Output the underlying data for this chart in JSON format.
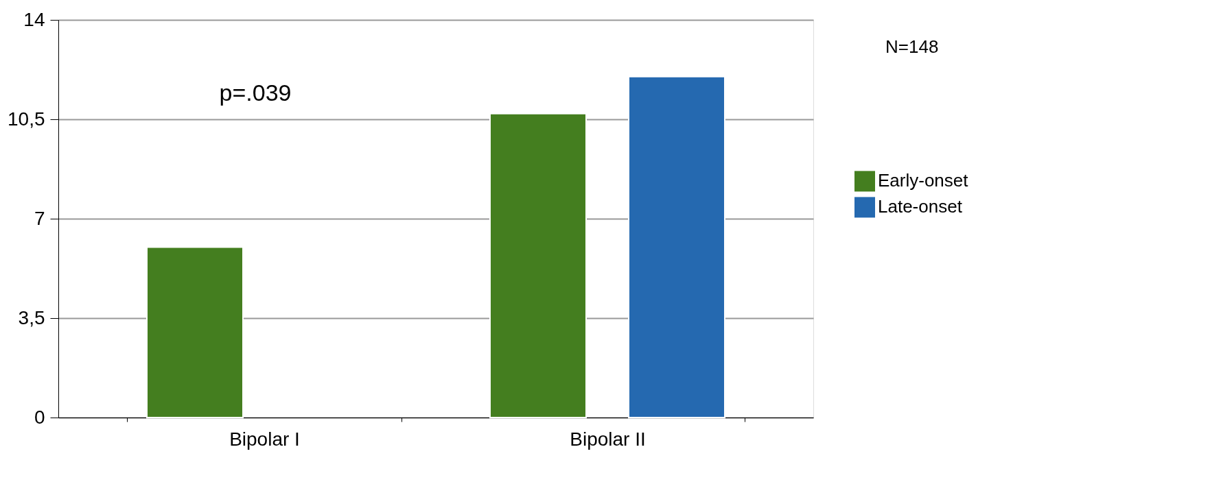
{
  "chart_data": {
    "type": "bar",
    "categories": [
      "Bipolar I",
      "Bipolar II"
    ],
    "series": [
      {
        "name": "Early-onset",
        "color": "#447e1f",
        "values": [
          6.0,
          10.7
        ]
      },
      {
        "name": "Late-onset",
        "color": "#2569b0",
        "values": [
          null,
          12.0
        ]
      }
    ],
    "ylim": [
      0,
      14
    ],
    "yticks": [
      0,
      {
        "value": 3.5,
        "label": "3,5"
      },
      7,
      {
        "value": 10.5,
        "label": "10,5"
      },
      14
    ],
    "grid": "y",
    "legend": "right",
    "annotations": [
      "p=.039",
      "N=148"
    ]
  }
}
